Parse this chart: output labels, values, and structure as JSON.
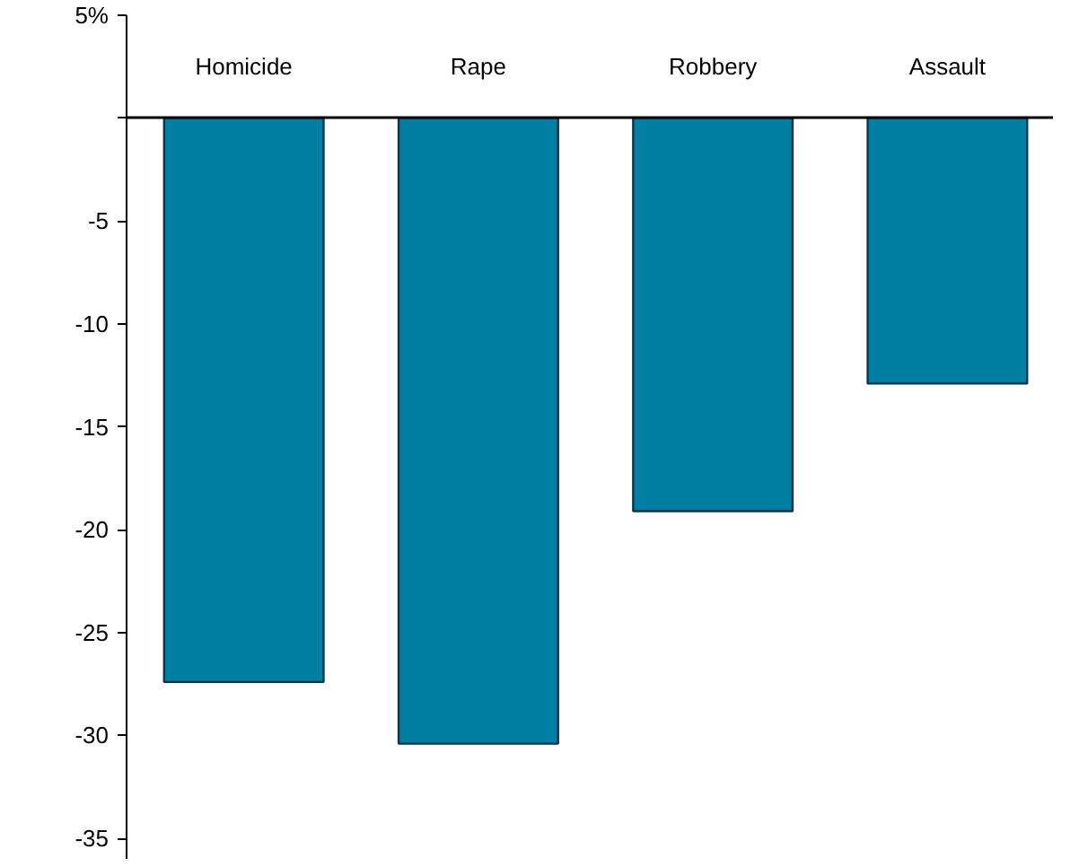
{
  "chart_data": {
    "type": "bar",
    "categories": [
      "Homicide",
      "Rape",
      "Robbery",
      "Assault"
    ],
    "values": [
      -27.4,
      -30.4,
      -19.1,
      -12.9
    ],
    "color": "#007fa3",
    "ylim": [
      -36,
      5
    ],
    "yticks": [
      {
        "value": 5,
        "label": "5%"
      },
      {
        "value": 0,
        "label": null
      },
      -5,
      -10,
      -15,
      -20,
      -25,
      -30,
      -35
    ],
    "grid": false
  }
}
